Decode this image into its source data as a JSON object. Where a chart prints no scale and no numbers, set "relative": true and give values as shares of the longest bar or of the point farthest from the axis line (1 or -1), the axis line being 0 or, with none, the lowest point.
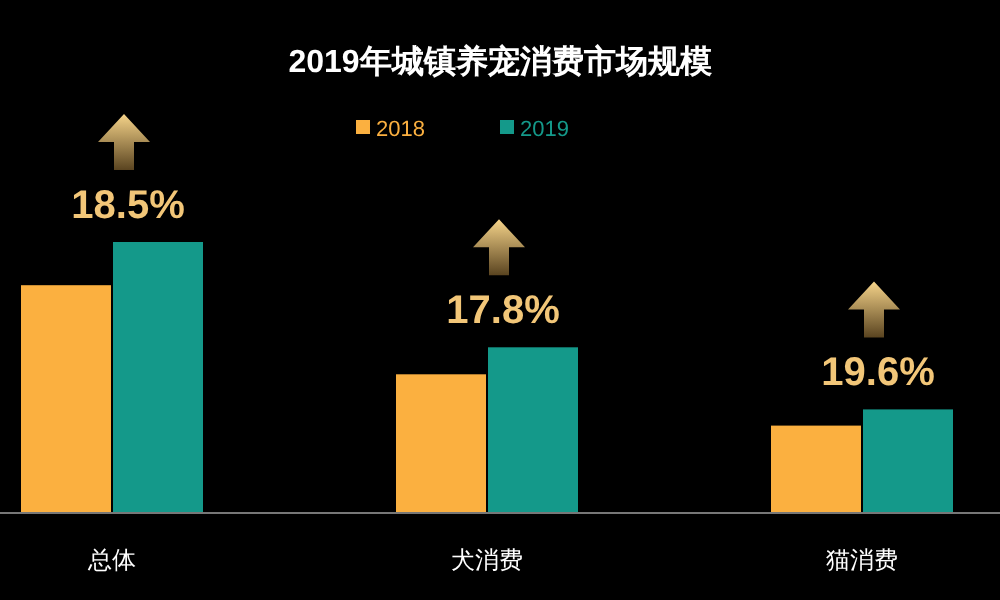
{
  "chart_data": {
    "type": "bar",
    "title": "2019年城镇养宠消费市场规模",
    "categories": [
      "总体",
      "犬消费",
      "猫消费"
    ],
    "relative": true,
    "legend": "top",
    "series": [
      {
        "name": "2018",
        "color": "#fbb040",
        "values": [
          0.84,
          0.51,
          0.32
        ]
      },
      {
        "name": "2019",
        "color": "#14998a",
        "values": [
          1,
          0.61,
          0.38
        ]
      }
    ],
    "annotations": [
      "18.5%",
      "17.8%",
      "19.6%"
    ]
  }
}
